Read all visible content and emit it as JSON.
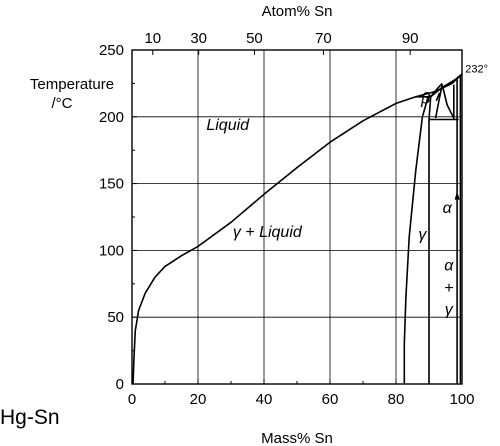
{
  "chart_data": {
    "type": "line",
    "system": "Hg-Sn",
    "xlabel": "Mass% Sn",
    "x2label": "Atom% Sn",
    "ylabel_line1": "Temperature",
    "ylabel_line2": "/°C",
    "xlim": [
      0,
      100
    ],
    "ylim": [
      0,
      250
    ],
    "x_ticks": [
      0,
      20,
      40,
      60,
      80,
      100
    ],
    "y_ticks": [
      0,
      50,
      100,
      150,
      200,
      250
    ],
    "x2_ticks": [
      10,
      30,
      50,
      70,
      90
    ],
    "x2_tick_positions_mass_pct": [
      6.3,
      20.2,
      37.1,
      58.0,
      84.3
    ],
    "grid": true,
    "phase_labels": [
      {
        "text": "Liquid",
        "x": 29,
        "y": 190
      },
      {
        "text": "γ + Liquid",
        "x": 41,
        "y": 110
      },
      {
        "text": "γ",
        "x": 88,
        "y": 108
      },
      {
        "text": "β",
        "x": 89,
        "y": 210
      },
      {
        "text": "α",
        "x": 95.5,
        "y": 128
      },
      {
        "text": "α",
        "x": 96,
        "y": 85
      },
      {
        "text": "+",
        "x": 96,
        "y": 68
      },
      {
        "text": "γ",
        "x": 96,
        "y": 52
      }
    ],
    "annotations": [
      {
        "text": "232°",
        "x": 101,
        "y": 233
      }
    ],
    "series": [
      {
        "values": [
          [
            0.3,
            0
          ],
          [
            0.6,
            20
          ],
          [
            1,
            40
          ],
          [
            2,
            55
          ],
          [
            4,
            68
          ],
          [
            7,
            80
          ],
          [
            10,
            88
          ],
          [
            15,
            96
          ],
          [
            20,
            103
          ],
          [
            30,
            121
          ],
          [
            40,
            142
          ],
          [
            50,
            162
          ],
          [
            60,
            181
          ],
          [
            70,
            197
          ],
          [
            80,
            210
          ],
          [
            86,
            215
          ],
          [
            92,
            219
          ],
          [
            97,
            225
          ],
          [
            100,
            232
          ]
        ]
      },
      {
        "values": [
          [
            82.5,
            0
          ],
          [
            82.5,
            30
          ],
          [
            83,
            65
          ],
          [
            84,
            110
          ],
          [
            86,
            160
          ],
          [
            88,
            200
          ],
          [
            89.5,
            213
          ],
          [
            90.5,
            216
          ]
        ]
      },
      {
        "values": [
          [
            90,
            0
          ],
          [
            90,
            198
          ],
          [
            90.5,
            215
          ]
        ]
      },
      {
        "values": [
          [
            86,
            215
          ],
          [
            90.5,
            215
          ]
        ]
      },
      {
        "values": [
          [
            90.5,
            215
          ],
          [
            92,
            218
          ],
          [
            94,
            222
          ],
          [
            96,
            225
          ],
          [
            98,
            228
          ],
          [
            100,
            232
          ]
        ]
      },
      {
        "values": [
          [
            90.5,
            215
          ],
          [
            91.5,
            218
          ],
          [
            92.5,
            221
          ],
          [
            94,
            225
          ]
        ]
      },
      {
        "values": [
          [
            90,
            198
          ],
          [
            99,
            198
          ]
        ]
      },
      {
        "values": [
          [
            94,
            224
          ],
          [
            93,
            212
          ],
          [
            92,
            199
          ]
        ]
      },
      {
        "values": [
          [
            94,
            224
          ],
          [
            95.5,
            209
          ],
          [
            97.5,
            199
          ]
        ]
      },
      {
        "values": [
          [
            97.5,
            224
          ],
          [
            97.5,
            198
          ]
        ]
      },
      {
        "values": [
          [
            98.5,
            228
          ],
          [
            98.5,
            0
          ]
        ]
      },
      {
        "values": [
          [
            99.5,
            231
          ],
          [
            99.5,
            0
          ]
        ]
      },
      {
        "values": [
          [
            98,
            138
          ],
          [
            98.5,
            142
          ]
        ]
      },
      {
        "values": [
          [
            98.5,
            142
          ],
          [
            99.1,
            138
          ]
        ]
      },
      {
        "values": [
          [
            92.2,
            212
          ],
          [
            93.2,
            218
          ]
        ]
      }
    ]
  }
}
